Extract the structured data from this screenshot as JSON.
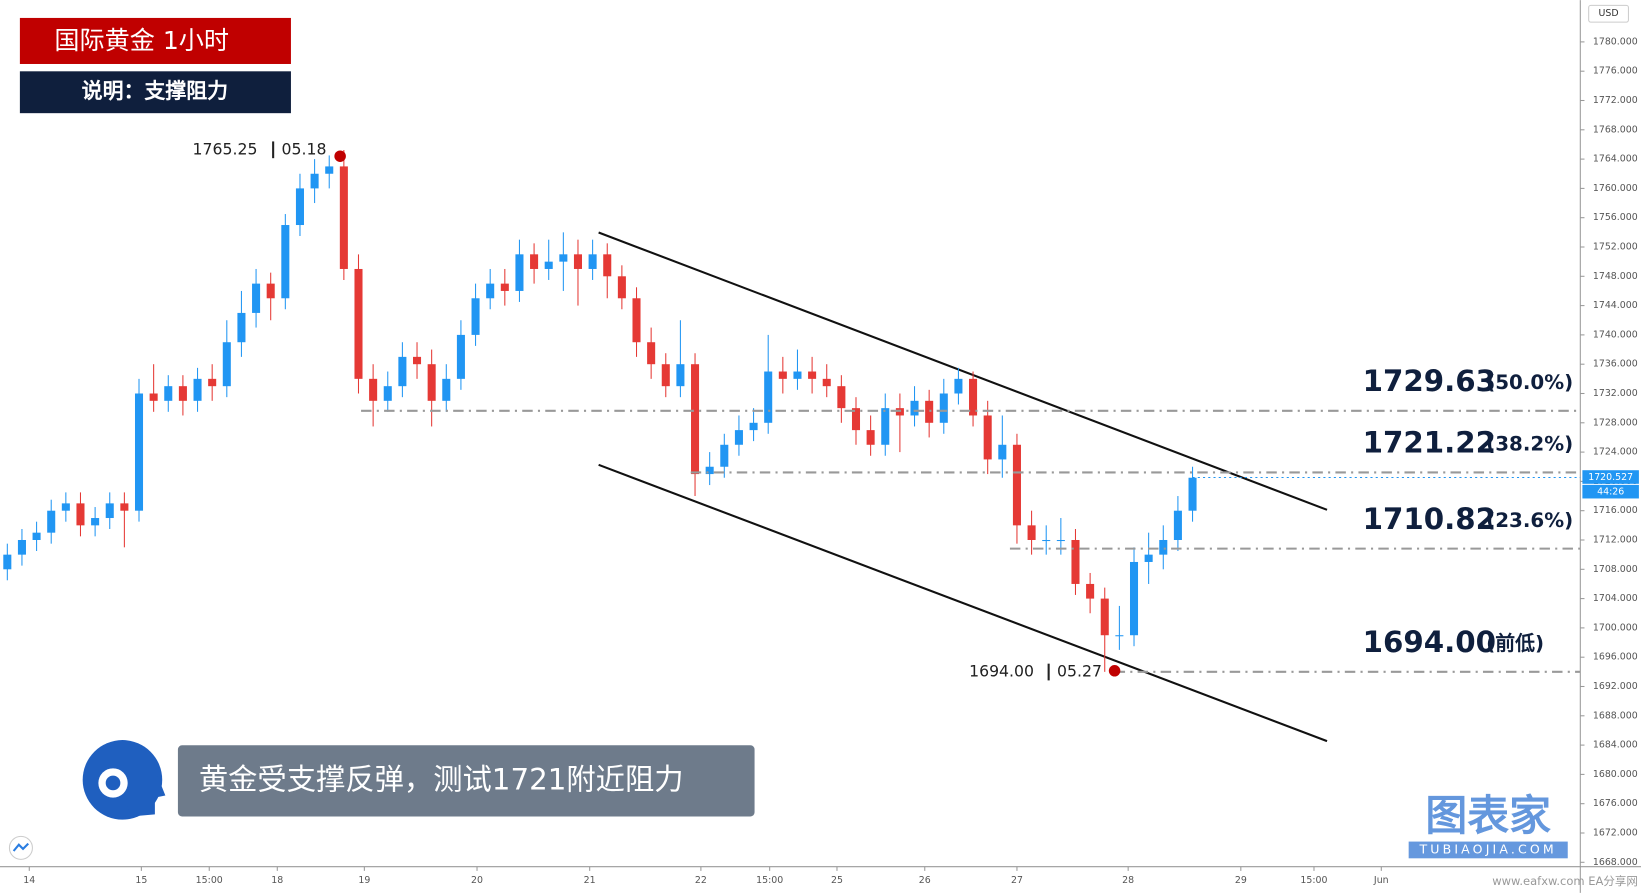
{
  "chart_data": {
    "type": "candlestick",
    "title": "国际黄金  1小时",
    "subtitle": "说明：支撑阻力",
    "caption": "黄金受支撑反弹，测试1721附近阻力",
    "currency": "USD",
    "up_color": "#2196f3",
    "down_color": "#e53935",
    "xlim": [
      0,
      108
    ],
    "xticks": [
      {
        "value": 2,
        "label": "14"
      },
      {
        "value": 9.66,
        "label": "15"
      },
      {
        "value": 14.3,
        "label": "15:00"
      },
      {
        "value": 18.95,
        "label": "18"
      },
      {
        "value": 24.9,
        "label": "19"
      },
      {
        "value": 32.6,
        "label": "20"
      },
      {
        "value": 40.3,
        "label": "21"
      },
      {
        "value": 47.9,
        "label": "22"
      },
      {
        "value": 52.6,
        "label": "15:00"
      },
      {
        "value": 57.2,
        "label": "25"
      },
      {
        "value": 63.2,
        "label": "26"
      },
      {
        "value": 69.5,
        "label": "27"
      },
      {
        "value": 77.1,
        "label": "28"
      },
      {
        "value": 84.8,
        "label": "29"
      },
      {
        "value": 89.8,
        "label": "15:00"
      },
      {
        "value": 94.4,
        "label": "Jun"
      }
    ],
    "ylim": [
      1667.4,
      1785.7
    ],
    "yticks": [
      {
        "value": 1668,
        "label": "1668.000"
      },
      {
        "value": 1672,
        "label": "1672.000"
      },
      {
        "value": 1676,
        "label": "1676.000"
      },
      {
        "value": 1680,
        "label": "1680.000"
      },
      {
        "value": 1684,
        "label": "1684.000"
      },
      {
        "value": 1688,
        "label": "1688.000"
      },
      {
        "value": 1692,
        "label": "1692.000"
      },
      {
        "value": 1696,
        "label": "1696.000"
      },
      {
        "value": 1700,
        "label": "1700.000"
      },
      {
        "value": 1704,
        "label": "1704.000"
      },
      {
        "value": 1708,
        "label": "1708.000"
      },
      {
        "value": 1712,
        "label": "1712.000"
      },
      {
        "value": 1716,
        "label": "1716.000"
      },
      {
        "value": 1720,
        "label": "1720.000"
      },
      {
        "value": 1724,
        "label": "1724.000"
      },
      {
        "value": 1728,
        "label": "1728.000"
      },
      {
        "value": 1732,
        "label": "1732.000"
      },
      {
        "value": 1736,
        "label": "1736.000"
      },
      {
        "value": 1740,
        "label": "1740.000"
      },
      {
        "value": 1744,
        "label": "1744.000"
      },
      {
        "value": 1748,
        "label": "1748.000"
      },
      {
        "value": 1752,
        "label": "1752.000"
      },
      {
        "value": 1756,
        "label": "1756.000"
      },
      {
        "value": 1760,
        "label": "1760.000"
      },
      {
        "value": 1764,
        "label": "1764.000"
      },
      {
        "value": 1768,
        "label": "1768.000"
      },
      {
        "value": 1772,
        "label": "1772.000"
      },
      {
        "value": 1776,
        "label": "1776.000"
      },
      {
        "value": 1780,
        "label": "1780.000"
      }
    ],
    "open": [
      1708,
      1710,
      1712,
      1713,
      1716,
      1717,
      1714,
      1715,
      1717,
      1716,
      1732,
      1731,
      1733,
      1731,
      1734,
      1733,
      1739,
      1743,
      1747,
      1745,
      1755,
      1760,
      1762,
      1763,
      1749,
      1734,
      1731,
      1733,
      1737,
      1736,
      1731,
      1734,
      1740,
      1745,
      1747,
      1746,
      1751,
      1749,
      1750,
      1751,
      1749,
      1751,
      1748,
      1745,
      1739,
      1736,
      1733,
      1736,
      1721,
      1722,
      1725,
      1727,
      1728,
      1735,
      1734,
      1735,
      1734,
      1733,
      1730,
      1727,
      1725,
      1730,
      1729,
      1731,
      1728,
      1732,
      1734,
      1729,
      1723,
      1725,
      1714,
      1712,
      1712,
      1712,
      1706,
      1704,
      1699,
      1699,
      1709,
      1710,
      1712,
      1716
    ],
    "high": [
      1711.5,
      1713.5,
      1714.5,
      1717.5,
      1718.5,
      1718.5,
      1716.5,
      1718.5,
      1718.5,
      1734,
      1736,
      1734.5,
      1734.5,
      1735.5,
      1736,
      1742,
      1746,
      1749,
      1748.5,
      1756.5,
      1762,
      1764,
      1764.5,
      1765.25,
      1751,
      1736,
      1735,
      1739,
      1739,
      1738,
      1736,
      1742,
      1747,
      1749,
      1749,
      1753,
      1752.5,
      1753,
      1754,
      1753,
      1753,
      1752.5,
      1749.5,
      1746.5,
      1741,
      1737.5,
      1742,
      1737.5,
      1724,
      1726.5,
      1729,
      1730,
      1740,
      1737,
      1738,
      1737,
      1736,
      1734.5,
      1731.5,
      1729,
      1732,
      1732,
      1733,
      1732.5,
      1734,
      1735.5,
      1735,
      1731,
      1729,
      1726.5,
      1716,
      1714,
      1715,
      1713.5,
      1707.5,
      1705.5,
      1703,
      1711,
      1713,
      1714,
      1718,
      1722
    ],
    "low": [
      1706.5,
      1708.5,
      1710.5,
      1711.5,
      1714.5,
      1712.5,
      1712.5,
      1713.5,
      1711,
      1714.5,
      1729.5,
      1729.5,
      1729,
      1729.5,
      1731,
      1731.5,
      1737,
      1741,
      1742,
      1743.5,
      1753.5,
      1758,
      1760,
      1747.5,
      1732,
      1727.5,
      1729.5,
      1731.5,
      1734,
      1727.5,
      1729.5,
      1732.5,
      1738.5,
      1743.5,
      1744,
      1744.5,
      1747,
      1747.5,
      1746,
      1744,
      1747.5,
      1745,
      1743.5,
      1737,
      1734,
      1731.5,
      1731.5,
      1718,
      1719.5,
      1720.5,
      1723.5,
      1725.5,
      1726.5,
      1732,
      1732.5,
      1732,
      1731.5,
      1728,
      1725,
      1723.5,
      1723.5,
      1724,
      1727.5,
      1726,
      1726.5,
      1730.5,
      1727.5,
      1721,
      1720.5,
      1711.5,
      1710,
      1710,
      1710,
      1704.5,
      1702,
      1694,
      1697,
      1697.5,
      1706,
      1708,
      1710.5,
      1714.5
    ],
    "close": [
      1710,
      1712,
      1713,
      1716,
      1717,
      1714,
      1715,
      1717,
      1716,
      1732,
      1731,
      1733,
      1731,
      1734,
      1733,
      1739,
      1743,
      1747,
      1745,
      1755,
      1760,
      1762,
      1763,
      1749,
      1734,
      1731,
      1733,
      1737,
      1736,
      1731,
      1734,
      1740,
      1745,
      1747,
      1746,
      1751,
      1749,
      1750,
      1751,
      1749,
      1751,
      1748,
      1745,
      1739,
      1736,
      1733,
      1736,
      1721,
      1722,
      1725,
      1727,
      1728,
      1735,
      1734,
      1735,
      1734,
      1733,
      1730,
      1727,
      1725,
      1730,
      1729,
      1731,
      1728,
      1732,
      1734,
      1729,
      1723,
      1725,
      1714,
      1712,
      1712,
      1712,
      1706,
      1704,
      1699,
      1699,
      1709,
      1710,
      1712,
      1716,
      1720.5
    ],
    "levels": [
      {
        "value": 1729.63,
        "label": "1729.63",
        "note": "(50.0%)"
      },
      {
        "value": 1721.22,
        "label": "1721.22",
        "note": "(38.2%)"
      },
      {
        "value": 1710.82,
        "label": "1710.82",
        "note": "(23.6%)"
      },
      {
        "value": 1694.0,
        "label": "1694.00",
        "note": "(前低)"
      }
    ],
    "high_note": {
      "price": "1765.25",
      "date": "05.18"
    },
    "low_note": {
      "price": "1694.00",
      "date": "05.27"
    },
    "last_price": 1720.527,
    "countdown": "44:26",
    "watermark": {
      "brand": "图表家",
      "url": "TUBIAOJIA.COM",
      "site": "www.eafxw.com  EA分享网"
    }
  }
}
